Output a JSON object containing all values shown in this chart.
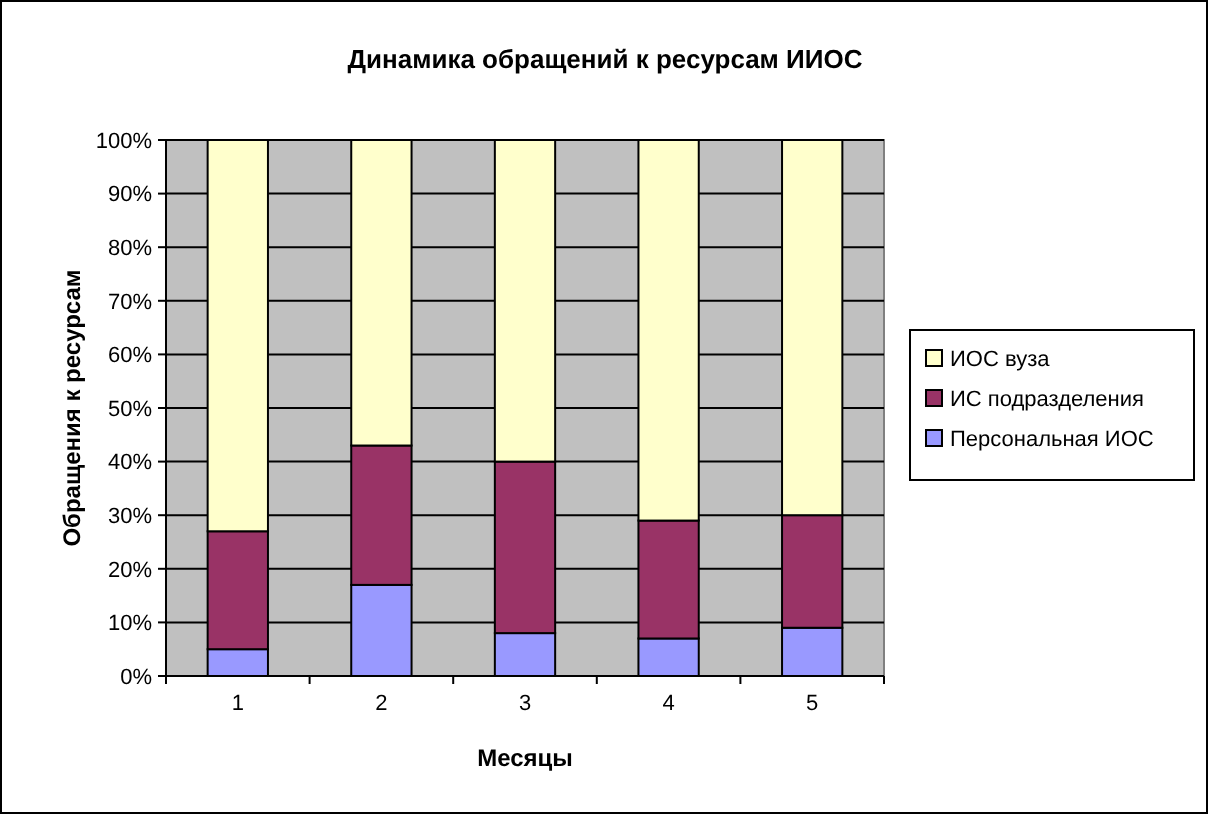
{
  "chart_data": {
    "type": "bar",
    "title": "Динамика обращений к ресурсам ИИОС",
    "xlabel": "Месяцы",
    "ylabel": "Обращения к ресурсам",
    "categories": [
      "1",
      "2",
      "3",
      "4",
      "5"
    ],
    "series": [
      {
        "name": "Персональная ИОС",
        "color": "#9999ff",
        "values": [
          5,
          17,
          8,
          7,
          9
        ]
      },
      {
        "name": "ИС подразделения",
        "color": "#993366",
        "values": [
          22,
          26,
          32,
          22,
          21
        ]
      },
      {
        "name": "ИОС вуза",
        "color": "#ffffcc",
        "values": [
          73,
          57,
          60,
          71,
          70
        ]
      }
    ],
    "stacked": true,
    "ylim": [
      0,
      100
    ],
    "yticks": [
      {
        "value": 0,
        "label": "0%"
      },
      {
        "value": 10,
        "label": "10%"
      },
      {
        "value": 20,
        "label": "20%"
      },
      {
        "value": 30,
        "label": "30%"
      },
      {
        "value": 40,
        "label": "40%"
      },
      {
        "value": 50,
        "label": "50%"
      },
      {
        "value": 60,
        "label": "60%"
      },
      {
        "value": 70,
        "label": "70%"
      },
      {
        "value": 80,
        "label": "80%"
      },
      {
        "value": 90,
        "label": "90%"
      },
      {
        "value": 100,
        "label": "100%"
      }
    ],
    "grid": "y",
    "legend": "right"
  }
}
